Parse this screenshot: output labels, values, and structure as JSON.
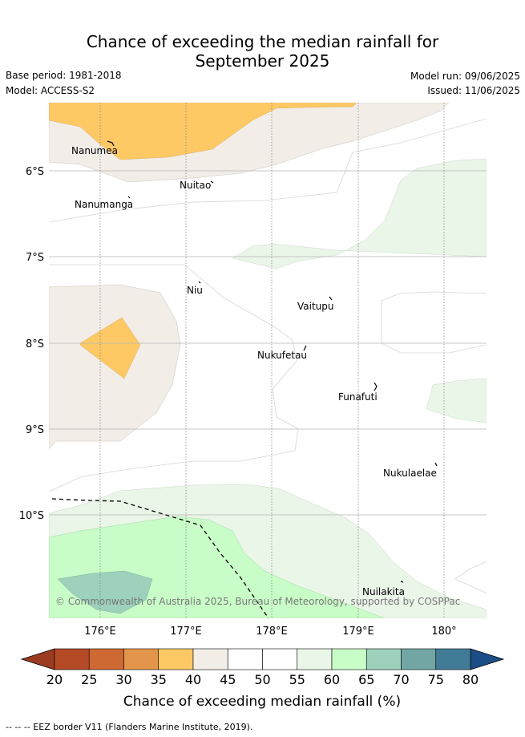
{
  "title_line1": "Chance of exceeding the median rainfall for",
  "title_line2": "September 2025",
  "meta": {
    "base_period": "Base period: 1981-2018",
    "model": "Model: ACCESS-S2",
    "model_run": "Model run: 09/06/2025",
    "issued": "Issued: 11/06/2025"
  },
  "map": {
    "lon_ticks": [
      "176°E",
      "177°E",
      "178°E",
      "179°E",
      "180°"
    ],
    "lat_ticks": [
      "6°S",
      "7°S",
      "8°S",
      "9°S",
      "10°S"
    ],
    "islands": [
      {
        "name": "Nanumea",
        "lon": 176.14,
        "lat": -5.66
      },
      {
        "name": "Nuitao",
        "lon": 177.3,
        "lat": -6.12
      },
      {
        "name": "Nanumanga",
        "lon": 176.33,
        "lat": -6.29
      },
      {
        "name": "Niu",
        "lon": 177.16,
        "lat": -7.24
      },
      {
        "name": "Vaitupu",
        "lon": 178.68,
        "lat": -7.47
      },
      {
        "name": "Nukufetau",
        "lon": 178.38,
        "lat": -8.02
      },
      {
        "name": "Funafuti",
        "lon": 179.2,
        "lat": -8.52
      },
      {
        "name": "Nukulaelae",
        "lon": 179.84,
        "lat": -9.39
      },
      {
        "name": "Nuilakita",
        "lon": 179.5,
        "lat": -10.78
      }
    ],
    "copyright": "© Commonwealth of Australia 2025, Bureau of Meteorology, supported by COSPPac"
  },
  "colorbar": {
    "ticks": [
      "20",
      "25",
      "30",
      "35",
      "40",
      "45",
      "50",
      "55",
      "60",
      "65",
      "70",
      "75",
      "80"
    ],
    "colors": [
      "#b54a27",
      "#cf6933",
      "#e3954b",
      "#fec965",
      "#f2ede7",
      "#ffffff",
      "#ffffff",
      "#eaf6e8",
      "#c9fdc8",
      "#9dd1bb",
      "#71a6a5",
      "#427b96"
    ],
    "under_color": "#9a3b22",
    "over_color": "#1b4d86",
    "label": "Chance of exceeding median rainfall (%)"
  },
  "footer": "-- -- -- EEZ border V11 (Flanders Marine Institute, 2019)."
}
